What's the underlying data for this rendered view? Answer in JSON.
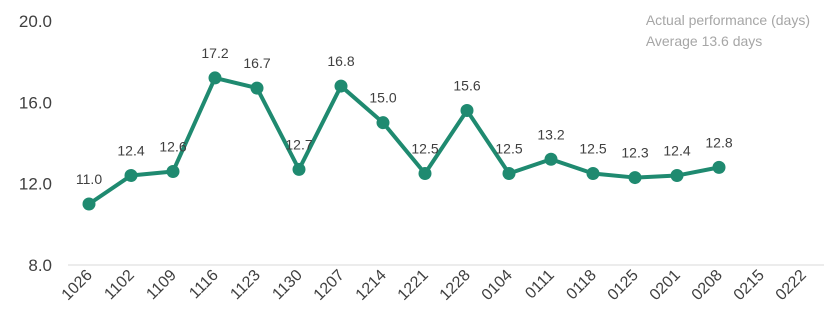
{
  "chart_data": {
    "type": "line",
    "categories": [
      "1026",
      "1102",
      "1109",
      "1116",
      "1123",
      "1130",
      "1207",
      "1214",
      "1221",
      "1228",
      "0104",
      "0111",
      "0118",
      "0125",
      "0201",
      "0208",
      "0215",
      "0222"
    ],
    "series": [
      {
        "name": "Actual performance (days)",
        "values": [
          11.0,
          12.4,
          12.6,
          17.2,
          16.7,
          12.7,
          16.8,
          15.0,
          12.5,
          15.6,
          12.5,
          13.2,
          12.5,
          12.3,
          12.4,
          12.8,
          null,
          null
        ],
        "labels": [
          "11.0",
          "12.4",
          "12.6",
          "17.2",
          "16.7",
          "12.7",
          "16.8",
          "15.0",
          "12.5",
          "15.6",
          "12.5",
          "13.2",
          "12.5",
          "12.3",
          "12.4",
          "12.8",
          "",
          ""
        ]
      }
    ],
    "ylim": [
      8.0,
      20.0
    ],
    "yticks": [
      8.0,
      12.0,
      16.0,
      20.0
    ],
    "ytick_labels": [
      "8.0",
      "12.0",
      "16.0",
      "20.0"
    ],
    "grid": false,
    "legend_placement": "top-right",
    "legend": {
      "series_label": "Actual performance (days)",
      "average_label": "Average 13.6 days"
    },
    "colors": {
      "line": "#1f8a70",
      "text": "#404040",
      "legend_text": "#a6a6a6",
      "axis": "#d9d9d9"
    }
  }
}
